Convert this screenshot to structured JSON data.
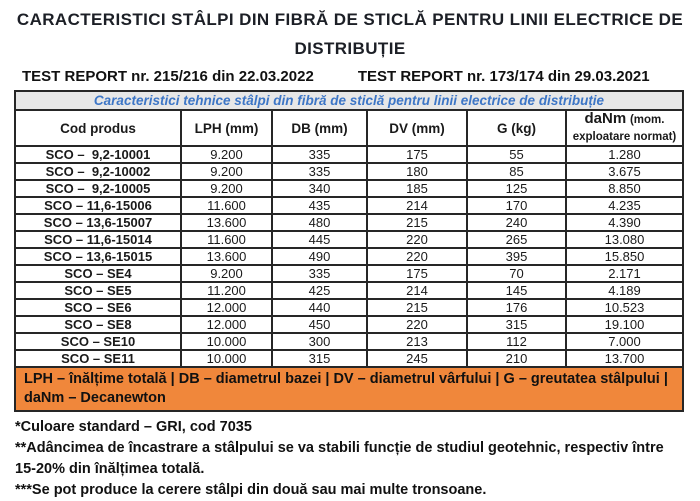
{
  "colors": {
    "legend_bg": "#F0873B",
    "caption_text": "#3D76C6",
    "caption_bg": "#E7E7E7",
    "border": "#262626"
  },
  "header": {
    "title_line1": "CARACTERISTICI STÂLPI DIN FIBRĂ DE STICLĂ PENTRU LINII ELECTRICE DE",
    "title_line2": "DISTRIBUȚIE",
    "test_reports": [
      "TEST REPORT nr. 215/216 din 22.03.2022",
      "TEST REPORT nr. 173/174 din 29.03.2021"
    ]
  },
  "table": {
    "caption": "Caracteristici tehnice stâlpi din fibră de sticlă pentru linii electrice de distribuție",
    "columns": [
      "Cod produs",
      "LPH (mm)",
      "DB (mm)",
      "DV (mm)",
      "G (kg)"
    ],
    "danm_header": {
      "main": "daNm",
      "small_inline": "(mom.",
      "small_line2": "exploatare normat)"
    },
    "rows": [
      {
        "code": "SCO –  9,2-10001",
        "lph": "9.200",
        "db": "335",
        "dv": "175",
        "g": "55",
        "danm": "1.280"
      },
      {
        "code": "SCO –  9,2-10002",
        "lph": "9.200",
        "db": "335",
        "dv": "180",
        "g": "85",
        "danm": "3.675"
      },
      {
        "code": "SCO –  9,2-10005",
        "lph": "9.200",
        "db": "340",
        "dv": "185",
        "g": "125",
        "danm": "8.850"
      },
      {
        "code": "SCO – 11,6-15006",
        "lph": "11.600",
        "db": "435",
        "dv": "214",
        "g": "170",
        "danm": "4.235"
      },
      {
        "code": "SCO – 13,6-15007",
        "lph": "13.600",
        "db": "480",
        "dv": "215",
        "g": "240",
        "danm": "4.390"
      },
      {
        "code": "SCO – 11,6-15014",
        "lph": "11.600",
        "db": "445",
        "dv": "220",
        "g": "265",
        "danm": "13.080"
      },
      {
        "code": "SCO – 13,6-15015",
        "lph": "13.600",
        "db": "490",
        "dv": "220",
        "g": "395",
        "danm": "15.850"
      },
      {
        "code": "SCO – SE4",
        "lph": "9.200",
        "db": "335",
        "dv": "175",
        "g": "70",
        "danm": "2.171"
      },
      {
        "code": "SCO – SE5",
        "lph": "11.200",
        "db": "425",
        "dv": "214",
        "g": "145",
        "danm": "4.189"
      },
      {
        "code": "SCO – SE6",
        "lph": "12.000",
        "db": "440",
        "dv": "215",
        "g": "176",
        "danm": "10.523"
      },
      {
        "code": "SCO – SE8",
        "lph": "12.000",
        "db": "450",
        "dv": "220",
        "g": "315",
        "danm": "19.100"
      },
      {
        "code": "SCO – SE10",
        "lph": "10.000",
        "db": "300",
        "dv": "213",
        "g": "112",
        "danm": "7.000"
      },
      {
        "code": "SCO – SE11",
        "lph": "10.000",
        "db": "315",
        "dv": "245",
        "g": "210",
        "danm": "13.700"
      }
    ],
    "legend": "LPH – înălțime totală | DB – diametrul bazei | DV – diametrul vârfului | G – greutatea stâlpului | daNm – Decanewton"
  },
  "footnotes": [
    "*Culoare standard – GRI, cod 7035",
    "**Adâncimea de încastrare a stâlpului se va stabili funcție de studiul geotehnic, respectiv între 15-20% din înălțimea totală.",
    "***Se pot produce la cerere stâlpi din două sau mai multe tronsoane."
  ]
}
